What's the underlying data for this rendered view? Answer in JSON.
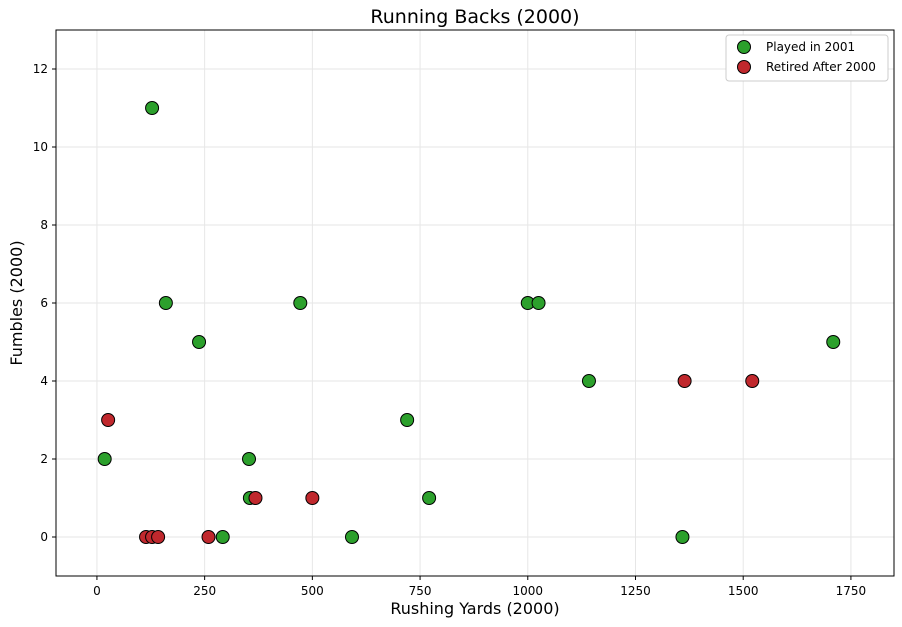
{
  "chart_data": {
    "type": "scatter",
    "title": "Running Backs (2000)",
    "xlabel": "Rushing Yards (2000)",
    "ylabel": "Fumbles (2000)",
    "xlim": [
      -95,
      1850
    ],
    "ylim": [
      -1,
      13
    ],
    "xticks": [
      0,
      250,
      500,
      750,
      1000,
      1250,
      1500,
      1750
    ],
    "yticks": [
      0,
      2,
      4,
      6,
      8,
      10,
      12
    ],
    "grid": true,
    "legend_position": "top-right",
    "series": [
      {
        "name": "Played in 2001",
        "color": "#2ca02c",
        "points": [
          {
            "x": 128,
            "y": 11
          },
          {
            "x": 160,
            "y": 6
          },
          {
            "x": 472,
            "y": 6
          },
          {
            "x": 237,
            "y": 5
          },
          {
            "x": 1000,
            "y": 6
          },
          {
            "x": 1025,
            "y": 6
          },
          {
            "x": 1142,
            "y": 4
          },
          {
            "x": 1709,
            "y": 5
          },
          {
            "x": 720,
            "y": 3
          },
          {
            "x": 18,
            "y": 2
          },
          {
            "x": 353,
            "y": 2
          },
          {
            "x": 355,
            "y": 1
          },
          {
            "x": 771,
            "y": 1
          },
          {
            "x": 292,
            "y": 0
          },
          {
            "x": 592,
            "y": 0
          },
          {
            "x": 1359,
            "y": 0
          }
        ]
      },
      {
        "name": "Retired After 2000",
        "color": "#c0282d",
        "points": [
          {
            "x": 26,
            "y": 3
          },
          {
            "x": 1364,
            "y": 4
          },
          {
            "x": 1521,
            "y": 4
          },
          {
            "x": 368,
            "y": 1
          },
          {
            "x": 500,
            "y": 1
          },
          {
            "x": 114,
            "y": 0
          },
          {
            "x": 128,
            "y": 0
          },
          {
            "x": 142,
            "y": 0
          },
          {
            "x": 259,
            "y": 0
          }
        ]
      }
    ]
  }
}
